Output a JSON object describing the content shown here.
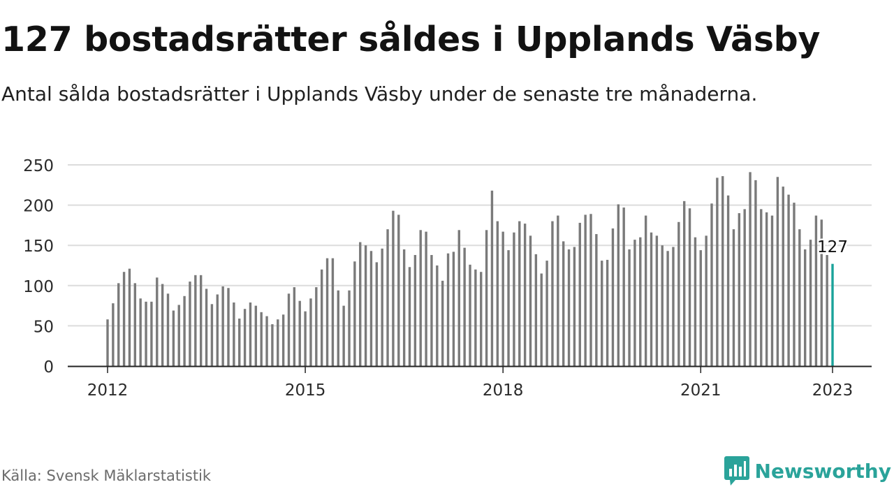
{
  "header": {
    "title": "127 bostadsrätter såldes i Upplands Väsby",
    "subtitle": "Antal sålda bostadsrätter i Upplands Väsby under de senaste tre månaderna."
  },
  "footer": {
    "source": "Källa: Svensk Mäklarstatistik",
    "brand": "Newsworthy"
  },
  "colors": {
    "bar": "#7a7a7a",
    "highlight": "#1aa39a",
    "grid": "#dcdcdc",
    "axis": "#222222"
  },
  "chart_data": {
    "type": "bar",
    "x_start": "2012-01",
    "x_end": "2023-01",
    "x_tick_labels": [
      "2012",
      "2015",
      "2018",
      "2021",
      "2023"
    ],
    "y_ticks": [
      0,
      50,
      100,
      150,
      200,
      250
    ],
    "ylim": [
      0,
      260
    ],
    "grid": true,
    "values": [
      58,
      78,
      103,
      117,
      121,
      103,
      84,
      80,
      80,
      110,
      102,
      90,
      69,
      76,
      87,
      105,
      113,
      113,
      96,
      77,
      89,
      99,
      97,
      79,
      59,
      71,
      79,
      75,
      67,
      62,
      52,
      58,
      64,
      90,
      98,
      81,
      68,
      84,
      98,
      120,
      134,
      134,
      94,
      75,
      94,
      130,
      154,
      150,
      143,
      129,
      146,
      170,
      193,
      188,
      145,
      123,
      138,
      169,
      167,
      138,
      125,
      106,
      140,
      142,
      169,
      147,
      126,
      120,
      117,
      169,
      218,
      180,
      167,
      144,
      166,
      180,
      177,
      162,
      139,
      115,
      131,
      180,
      187,
      155,
      145,
      148,
      178,
      188,
      189,
      164,
      131,
      132,
      171,
      201,
      197,
      145,
      157,
      160,
      187,
      166,
      162,
      150,
      143,
      148,
      179,
      205,
      196,
      160,
      144,
      162,
      202,
      234,
      236,
      212,
      170,
      190,
      195,
      241,
      231,
      195,
      191,
      187,
      235,
      223,
      213,
      203,
      170,
      145,
      157,
      187,
      182,
      138,
      127
    ],
    "highlight_index": 132,
    "highlight_label": "127"
  }
}
